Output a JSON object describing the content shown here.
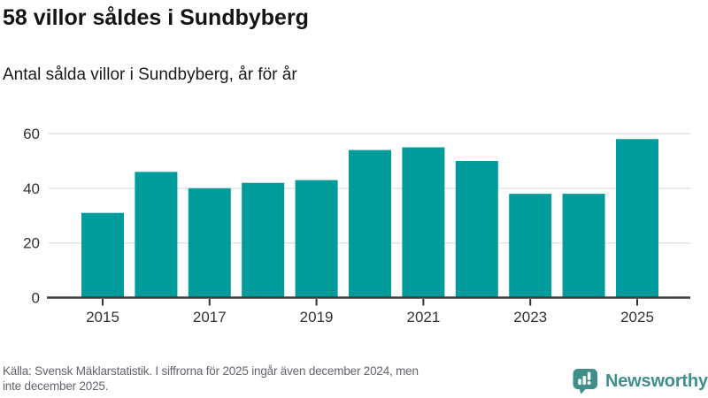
{
  "header": {
    "title": "58 villor såldes i Sundbyberg",
    "subtitle": "Antal sålda villor i Sundbyberg, år för år"
  },
  "chart_data": {
    "type": "bar",
    "title": "58 villor såldes i Sundbyberg",
    "subtitle": "Antal sålda villor i Sundbyberg, år för år",
    "categories": [
      "2015",
      "2016",
      "2017",
      "2018",
      "2019",
      "2020",
      "2021",
      "2022",
      "2023",
      "2024",
      "2025"
    ],
    "values": [
      31,
      46,
      40,
      42,
      43,
      54,
      55,
      50,
      38,
      38,
      58
    ],
    "x_tick_labels": [
      "2015",
      "2017",
      "2019",
      "2021",
      "2023",
      "2025"
    ],
    "y_ticks": [
      0,
      20,
      40,
      60
    ],
    "ylim": [
      0,
      60
    ],
    "grid": true,
    "legend": false,
    "bar_color": "#009C9C",
    "axis_color": "#3D3D3D",
    "grid_color": "#E3E3E3",
    "tick_label_color": "#333333"
  },
  "footer": {
    "source_lines": [
      "Källa: Svensk Mäklarstatistik. I siffrorna för 2025 ingår även december 2024, men",
      "inte december 2025."
    ],
    "brand_name": "Newsworthy",
    "brand_color": "#3E8E8A"
  }
}
